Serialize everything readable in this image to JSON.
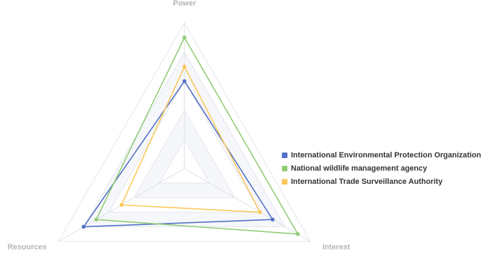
{
  "chart_data": {
    "type": "radar",
    "axes": [
      "Power",
      "Interest",
      "Resources"
    ],
    "max": 10,
    "rings": 5,
    "series": [
      {
        "name": "International Environmental Protection Organization",
        "color": "#5470c6",
        "values": [
          6,
          7,
          8
        ]
      },
      {
        "name": "National wildlife management agency",
        "color": "#91cc75",
        "values": [
          9,
          9,
          7
        ]
      },
      {
        "name": "International Trade Surveillance Authority",
        "color": "#fac858",
        "values": [
          7,
          6,
          5
        ]
      }
    ],
    "legend_position": "right"
  }
}
